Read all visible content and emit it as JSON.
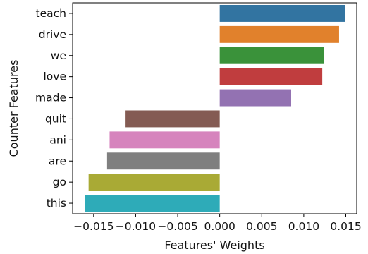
{
  "chart_data": {
    "type": "bar",
    "orientation": "horizontal",
    "title": "",
    "xlabel": "Features' Weights",
    "ylabel": "Counter Features",
    "xlim": [
      -0.0175,
      0.0163
    ],
    "x_ticks": [
      -0.015,
      -0.01,
      -0.005,
      0.0,
      0.005,
      0.01,
      0.015
    ],
    "x_tick_labels": [
      "−0.015",
      "−0.010",
      "−0.005",
      "0.000",
      "0.005",
      "0.010",
      "0.015"
    ],
    "grid": false,
    "legend": "none",
    "categories": [
      "teach",
      "drive",
      "we",
      "love",
      "made",
      "quit",
      "ani",
      "are",
      "go",
      "this"
    ],
    "values": [
      0.0149,
      0.0142,
      0.0124,
      0.0122,
      0.0085,
      -0.0112,
      -0.0131,
      -0.0134,
      -0.0156,
      -0.016
    ],
    "colors": [
      "#3274a1",
      "#e1812c",
      "#3a923a",
      "#c03d3e",
      "#9372b2",
      "#845b53",
      "#d684bd",
      "#7f7f7f",
      "#a9aa35",
      "#2eabb8"
    ]
  }
}
